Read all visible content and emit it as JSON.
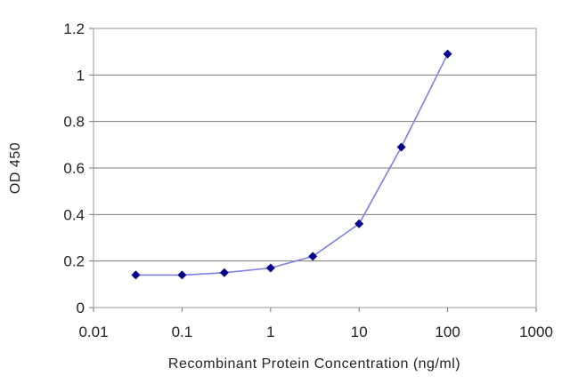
{
  "chart_data": {
    "type": "line",
    "title": "",
    "xlabel": "Recombinant Protein Concentration (ng/ml)",
    "ylabel": "OD 450",
    "x_scale": "log",
    "xlim": [
      0.01,
      1000
    ],
    "ylim": [
      0,
      1.2
    ],
    "x_ticks": [
      "0.01",
      "0.1",
      "1",
      "10",
      "100",
      "1000"
    ],
    "y_ticks": [
      "0",
      "0.2",
      "0.4",
      "0.6",
      "0.8",
      "1",
      "1.2"
    ],
    "grid": "horizontal",
    "legend": "none",
    "series": [
      {
        "x": [
          0.03,
          0.1,
          0.3,
          1,
          3,
          10,
          30,
          100
        ],
        "y": [
          0.14,
          0.14,
          0.15,
          0.17,
          0.22,
          0.36,
          0.69,
          1.09
        ],
        "color": "#00008b",
        "line_color": "#7f7fe6"
      }
    ]
  }
}
